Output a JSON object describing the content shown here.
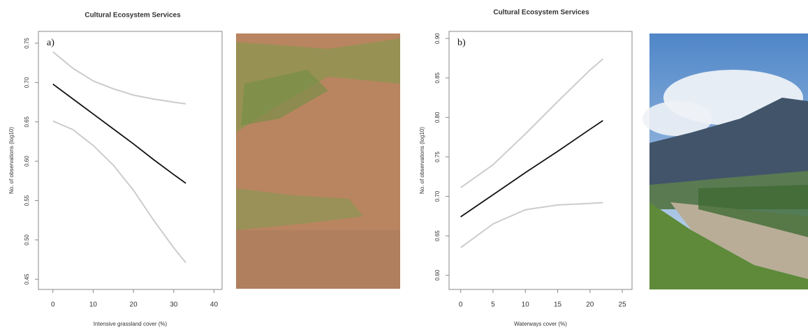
{
  "chart_data": [
    {
      "type": "line",
      "title": "Cultural Ecosystem Services",
      "panel_label": "a)",
      "x_label": "Intensive grassland cover (%)",
      "y_label": "No. of observations (log10)",
      "x": [
        0,
        5,
        10,
        15,
        20,
        25,
        30,
        33
      ],
      "series": [
        {
          "color": "#111111",
          "values": [
            0.698,
            0.679,
            0.66,
            0.641,
            0.622,
            0.602,
            0.583,
            0.572
          ]
        },
        {
          "color": "#cccccc",
          "values": [
            0.739,
            0.718,
            0.702,
            0.692,
            0.684,
            0.679,
            0.675,
            0.673
          ]
        },
        {
          "color": "#cccccc",
          "values": [
            0.651,
            0.64,
            0.62,
            0.595,
            0.563,
            0.525,
            0.49,
            0.471
          ]
        }
      ],
      "xlim": [
        -3.6,
        42
      ],
      "xticks": [
        0,
        10,
        20,
        30,
        40
      ],
      "ylim": [
        0.437,
        0.765
      ],
      "yticks": [
        {
          "value": 0.45,
          "label": "0.45"
        },
        {
          "value": 0.5,
          "label": "0.50"
        },
        {
          "value": 0.55,
          "label": "0.55"
        },
        {
          "value": 0.6,
          "label": "0.60"
        },
        {
          "value": 0.65,
          "label": "0.65"
        },
        {
          "value": 0.7,
          "label": "0.70"
        },
        {
          "value": 0.75,
          "label": "0.75"
        }
      ]
    },
    {
      "type": "line",
      "title": "Cultural Ecosystem Services",
      "panel_label": "b)",
      "x_label": "Waterways cover (%)",
      "y_label": "No. of observations (log10)",
      "x": [
        0,
        5,
        10,
        15,
        20,
        22
      ],
      "series": [
        {
          "color": "#111111",
          "values": [
            0.674,
            0.702,
            0.73,
            0.757,
            0.785,
            0.796
          ]
        },
        {
          "color": "#cccccc",
          "values": [
            0.711,
            0.74,
            0.779,
            0.82,
            0.86,
            0.874
          ]
        },
        {
          "color": "#cccccc",
          "values": [
            0.635,
            0.665,
            0.683,
            0.689,
            0.691,
            0.692
          ]
        }
      ],
      "xlim": [
        -1.8,
        26.5
      ],
      "xticks": [
        0,
        5,
        10,
        15,
        20,
        25
      ],
      "ylim": [
        0.582,
        0.909
      ],
      "yticks": [
        {
          "value": 0.6,
          "label": "0.60"
        },
        {
          "value": 0.65,
          "label": "0.65"
        },
        {
          "value": 0.7,
          "label": "0.70"
        },
        {
          "value": 0.75,
          "label": "0.75"
        },
        {
          "value": 0.8,
          "label": "0.80"
        },
        {
          "value": 0.85,
          "label": "0.85"
        },
        {
          "value": 0.9,
          "label": "0.90"
        }
      ]
    }
  ]
}
